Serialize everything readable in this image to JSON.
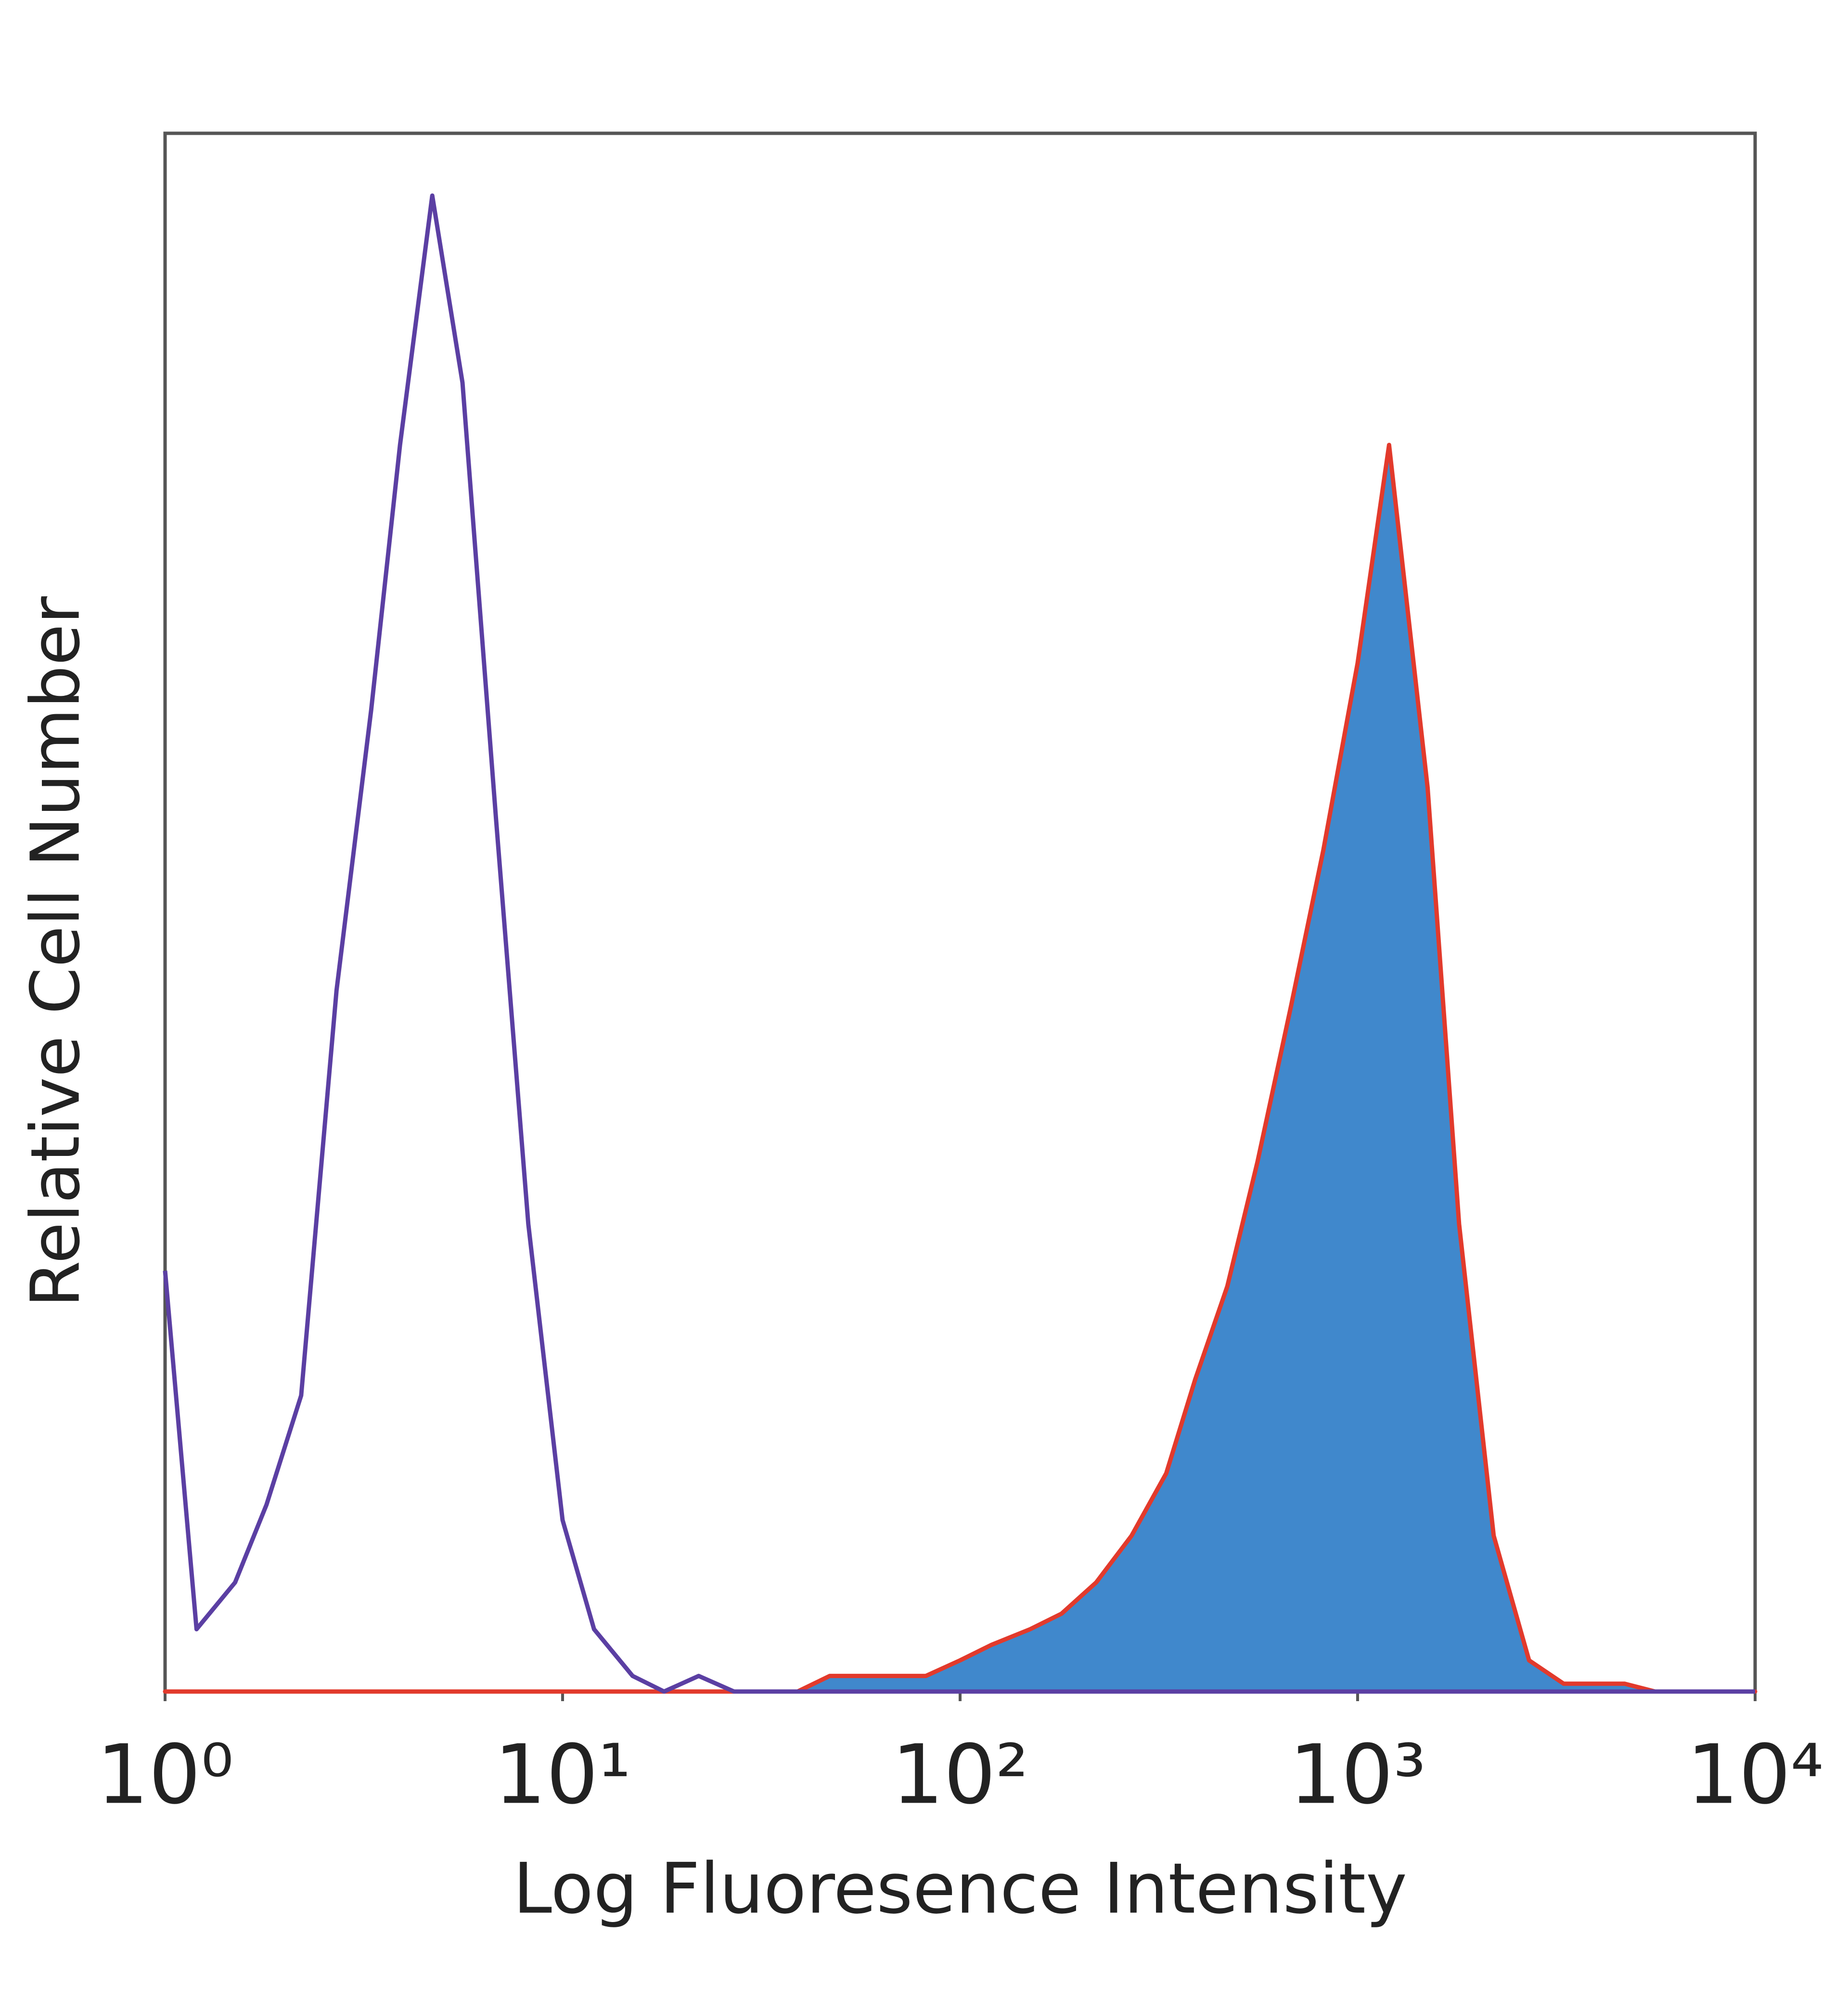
{
  "chart_data": {
    "type": "histogram",
    "x_label": "Log Fluoresence Intensity",
    "y_label": "Relative Cell Number",
    "x_scale": "log",
    "x": [
      1,
      1.2,
      1.5,
      1.8,
      2.2,
      2.7,
      3.3,
      3.9,
      4.7,
      5.6,
      6.8,
      8.2,
      10,
      12,
      15,
      18,
      22,
      27,
      33,
      39,
      47,
      56,
      68,
      82,
      100,
      120,
      150,
      180,
      220,
      270,
      330,
      390,
      470,
      560,
      680,
      820,
      1000,
      1200,
      1500,
      1800,
      2200,
      2700,
      3300,
      3900,
      4700,
      5600,
      6800,
      8200,
      10000
    ],
    "series": [
      {
        "color": "#4088cc",
        "edge_color": "#e23a2c",
        "filled": true,
        "values": [
          0,
          0,
          0,
          0,
          0,
          0,
          0,
          0,
          0,
          0,
          0,
          0,
          0,
          0,
          0,
          0,
          0,
          0,
          0,
          0,
          1,
          1,
          1,
          1,
          2,
          3,
          4,
          5,
          7,
          10,
          14,
          20,
          26,
          34,
          44,
          54,
          66,
          80,
          58,
          30,
          10,
          2,
          0.5,
          0.5,
          0.5,
          0,
          0,
          0,
          0
        ]
      },
      {
        "color": "#5b3fa3",
        "filled": false,
        "values": [
          27,
          4,
          7,
          12,
          19,
          45,
          63,
          80,
          96,
          84,
          56,
          30,
          11,
          4,
          1,
          0,
          1,
          0,
          0,
          0,
          0,
          0,
          0,
          0,
          0,
          0,
          0,
          0,
          0,
          0,
          0,
          0,
          0,
          0,
          0,
          0,
          0,
          0,
          0,
          0,
          0,
          0,
          0,
          0,
          0,
          0,
          0,
          0,
          0
        ]
      }
    ],
    "xlim": [
      1,
      10000
    ],
    "xticks": [
      {
        "value": 1,
        "label": "10⁰"
      },
      {
        "value": 10,
        "label": "10¹"
      },
      {
        "value": 100,
        "label": "10²"
      },
      {
        "value": 1000,
        "label": "10³"
      },
      {
        "value": 10000,
        "label": "10⁴"
      }
    ],
    "ylim": [
      0,
      100
    ]
  }
}
